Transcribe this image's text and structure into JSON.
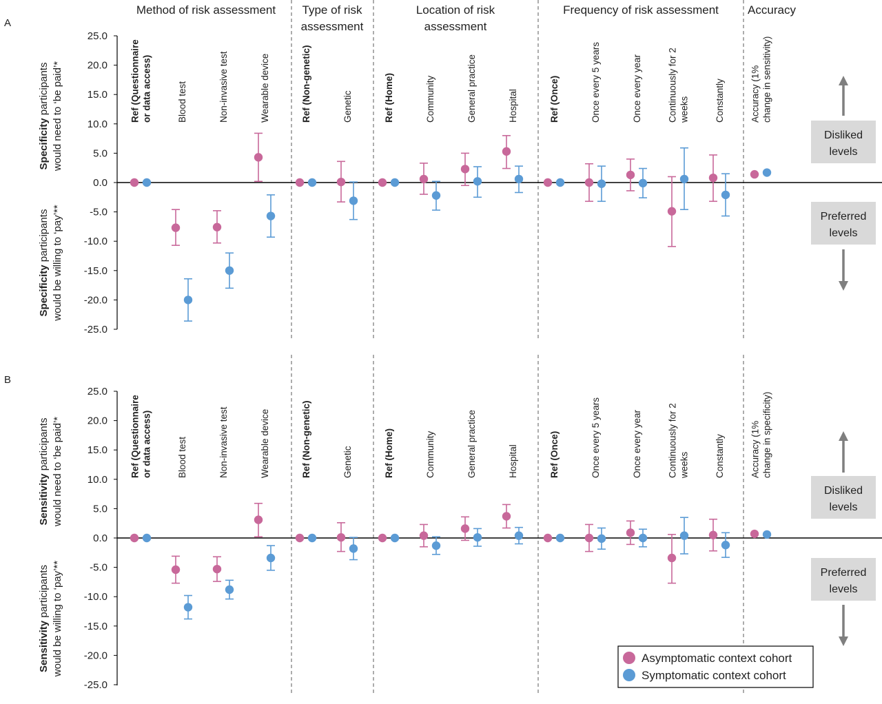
{
  "colors": {
    "asymptomatic": "#c8689a",
    "symptomatic": "#5b9bd5",
    "axis": "#000000",
    "divider": "#7f7f7f",
    "side_box": "#d9d9d9",
    "arrow": "#7f7f7f"
  },
  "group_titles": [
    [
      "Method of risk assessment"
    ],
    [
      "Type of risk",
      "assessment"
    ],
    [
      "Location of risk",
      "assessment"
    ],
    [
      "Frequency of risk assessment"
    ],
    [
      "Accuracy"
    ]
  ],
  "side_labels": {
    "disliked": [
      "Disliked",
      "levels"
    ],
    "preferred": [
      "Preferred",
      "levels"
    ]
  },
  "legend": {
    "asymptomatic": "Asymptomatic context cohort",
    "symptomatic": "Symptomatic context cohort"
  },
  "chart_data": [
    {
      "panel": "A",
      "type": "scatter",
      "ylim": [
        -25,
        25
      ],
      "yticks": [
        "25.0",
        "20.0",
        "15.0",
        "10.0",
        "5.0",
        "0.0",
        "-5.0",
        "-10.0",
        "-15.0",
        "-20.0",
        "-25.0"
      ],
      "ylabel_upper": {
        "bold": "Specificity",
        "rest": " participants",
        "line2": "would need to ‘be paid’*"
      },
      "ylabel_lower": {
        "bold": "Specificity",
        "rest": " participants",
        "line2": "would be willing to ‘pay’**"
      },
      "categories": [
        {
          "label": [
            "Ref (Questionnaire",
            "or data access)"
          ],
          "bold": true
        },
        {
          "label": [
            "Blood test"
          ],
          "bold": false
        },
        {
          "label": [
            "Non-invasive test"
          ],
          "bold": false
        },
        {
          "label": [
            "Wearable device"
          ],
          "bold": false
        },
        {
          "label": [
            "Ref (Non-genetic)"
          ],
          "bold": true
        },
        {
          "label": [
            "Genetic"
          ],
          "bold": false
        },
        {
          "label": [
            "Ref (Home)"
          ],
          "bold": true
        },
        {
          "label": [
            "Community"
          ],
          "bold": false
        },
        {
          "label": [
            "General practice"
          ],
          "bold": false
        },
        {
          "label": [
            "Hospital"
          ],
          "bold": false
        },
        {
          "label": [
            "Ref (Once)"
          ],
          "bold": true
        },
        {
          "label": [
            "Once every 5 years"
          ],
          "bold": false
        },
        {
          "label": [
            "Once every year"
          ],
          "bold": false
        },
        {
          "label": [
            "Continuously for 2",
            "weeks"
          ],
          "bold": false
        },
        {
          "label": [
            "Constantly"
          ],
          "bold": false
        },
        {
          "label": [
            "Accuracy (1%",
            "change in sensitivity)"
          ],
          "bold": false
        }
      ],
      "series": [
        {
          "name": "Asymptomatic context cohort",
          "values": [
            0,
            -7.7,
            -7.6,
            4.3,
            0,
            0.1,
            0,
            0.6,
            2.3,
            5.3,
            0,
            0,
            1.3,
            -4.9,
            0.8,
            1.4
          ],
          "lower": [
            null,
            -10.7,
            -10.3,
            0.2,
            null,
            -3.3,
            null,
            -2.0,
            -0.5,
            2.4,
            null,
            -3.2,
            -1.4,
            -10.9,
            -3.2,
            null
          ],
          "upper": [
            null,
            -4.6,
            -4.8,
            8.4,
            null,
            3.6,
            null,
            3.3,
            5.0,
            8.0,
            null,
            3.2,
            4.0,
            1.0,
            4.7,
            null
          ]
        },
        {
          "name": "Symptomatic context cohort",
          "values": [
            0,
            -20.0,
            -15.0,
            -5.7,
            0,
            -3.1,
            0,
            -2.2,
            0.2,
            0.6,
            0,
            -0.2,
            -0.1,
            0.6,
            -2.1,
            1.7
          ],
          "lower": [
            null,
            -23.6,
            -18.0,
            -9.3,
            null,
            -6.3,
            null,
            -4.7,
            -2.5,
            -1.7,
            null,
            -3.2,
            -2.6,
            -4.6,
            -5.7,
            null
          ],
          "upper": [
            null,
            -16.4,
            -12.0,
            -2.1,
            null,
            0.1,
            null,
            0.2,
            2.7,
            2.8,
            null,
            2.8,
            2.4,
            5.9,
            1.5,
            null
          ]
        }
      ]
    },
    {
      "panel": "B",
      "type": "scatter",
      "ylim": [
        -25,
        25
      ],
      "yticks": [
        "25.0",
        "20.0",
        "15.0",
        "10.0",
        "5.0",
        "0.0",
        "-5.0",
        "-10.0",
        "-15.0",
        "-20.0",
        "-25.0"
      ],
      "ylabel_upper": {
        "bold": "Sensitivity",
        "rest": " participants",
        "line2": "would need to ‘be paid’*"
      },
      "ylabel_lower": {
        "bold": "Sensitivity",
        "rest": " participants",
        "line2": "would be willing to ‘pay’**"
      },
      "categories": [
        {
          "label": [
            "Ref (Questionnaire",
            "or data access)"
          ],
          "bold": true
        },
        {
          "label": [
            "Blood test"
          ],
          "bold": false
        },
        {
          "label": [
            "Non-invasive test"
          ],
          "bold": false
        },
        {
          "label": [
            "Wearable device"
          ],
          "bold": false
        },
        {
          "label": [
            "Ref (Non-genetic)"
          ],
          "bold": true
        },
        {
          "label": [
            "Genetic"
          ],
          "bold": false
        },
        {
          "label": [
            "Ref (Home)"
          ],
          "bold": true
        },
        {
          "label": [
            "Community"
          ],
          "bold": false
        },
        {
          "label": [
            "General practice"
          ],
          "bold": false
        },
        {
          "label": [
            "Hospital"
          ],
          "bold": false
        },
        {
          "label": [
            "Ref (Once)"
          ],
          "bold": true
        },
        {
          "label": [
            "Once every 5 years"
          ],
          "bold": false
        },
        {
          "label": [
            "Once every year"
          ],
          "bold": false
        },
        {
          "label": [
            "Continuously for 2",
            "weeks"
          ],
          "bold": false
        },
        {
          "label": [
            "Constantly"
          ],
          "bold": false
        },
        {
          "label": [
            "Accuracy (1%",
            "change in specificity)"
          ],
          "bold": false
        }
      ],
      "series": [
        {
          "name": "Asymptomatic context cohort",
          "values": [
            0,
            -5.4,
            -5.3,
            3.1,
            0,
            0.1,
            0,
            0.4,
            1.6,
            3.7,
            0,
            0,
            0.9,
            -3.4,
            0.5,
            0.7
          ],
          "lower": [
            null,
            -7.7,
            -7.4,
            0.2,
            null,
            -2.3,
            null,
            -1.5,
            -0.4,
            1.7,
            null,
            -2.3,
            -1.1,
            -7.7,
            -2.2,
            null
          ],
          "upper": [
            null,
            -3.1,
            -3.2,
            5.9,
            null,
            2.6,
            null,
            2.3,
            3.6,
            5.7,
            null,
            2.3,
            2.9,
            0.6,
            3.2,
            null
          ]
        },
        {
          "name": "Symptomatic context cohort",
          "values": [
            0,
            -11.8,
            -8.8,
            -3.4,
            0,
            -1.8,
            0,
            -1.3,
            0.1,
            0.4,
            0,
            -0.1,
            0,
            0.4,
            -1.2,
            0.6
          ],
          "lower": [
            null,
            -13.8,
            -10.4,
            -5.5,
            null,
            -3.7,
            null,
            -2.8,
            -1.4,
            -1.0,
            null,
            -1.9,
            -1.5,
            -2.7,
            -3.3,
            null
          ],
          "upper": [
            null,
            -9.8,
            -7.2,
            -1.3,
            null,
            0.1,
            null,
            0.2,
            1.6,
            1.8,
            null,
            1.7,
            1.5,
            3.5,
            0.9,
            null
          ]
        }
      ]
    }
  ]
}
